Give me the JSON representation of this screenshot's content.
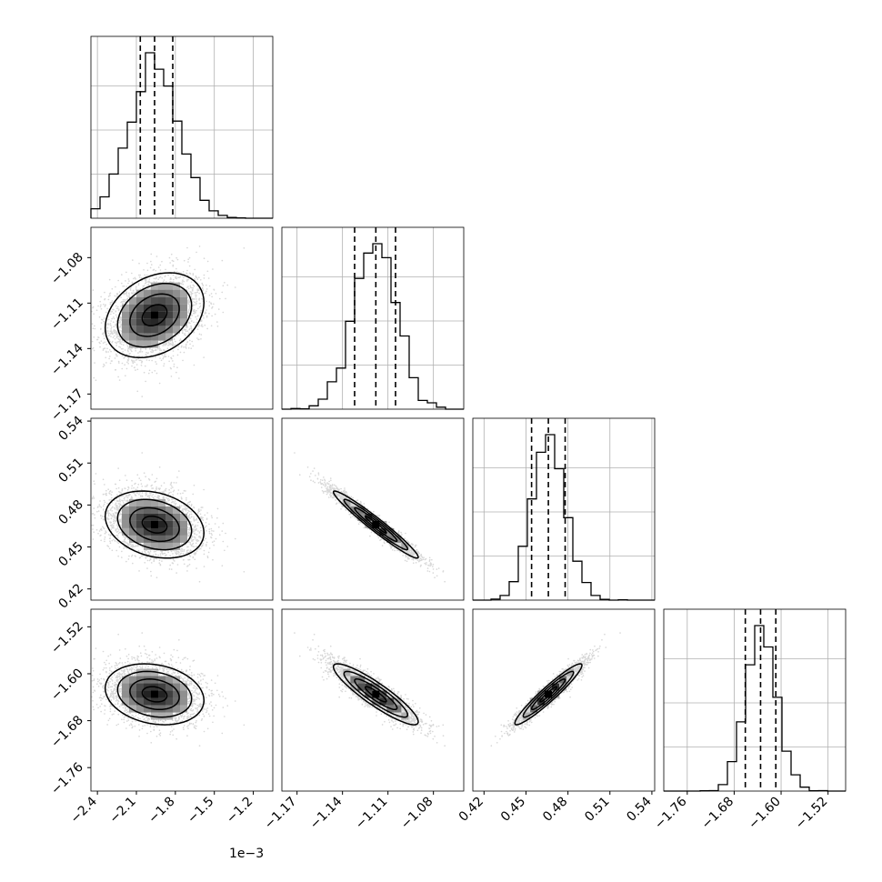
{
  "chart_data": {
    "type": "corner",
    "grid": true,
    "quantiles_shown": [
      0.16,
      0.5,
      0.84
    ],
    "offset_label": "1e−3",
    "params": [
      {
        "range": [
          -2.45,
          -1.05
        ],
        "ticks": [
          -2.4,
          -2.1,
          -1.8,
          -1.5,
          -1.2
        ],
        "tick_labels": [
          "−2.4",
          "−2.1",
          "−1.8",
          "−1.5",
          "−1.2"
        ],
        "mean": -1.96,
        "sd": 0.19,
        "quantiles": [
          -2.07,
          -1.96,
          -1.82
        ]
      },
      {
        "range": [
          -1.18,
          -1.06
        ],
        "ticks": [
          -1.17,
          -1.14,
          -1.11,
          -1.08
        ],
        "tick_labels": [
          "−1.17",
          "−1.14",
          "−1.11",
          "−1.08"
        ],
        "mean": -1.118,
        "sd": 0.014,
        "quantiles": [
          -1.132,
          -1.118,
          -1.105
        ]
      },
      {
        "range": [
          0.412,
          0.542
        ],
        "ticks": [
          0.42,
          0.45,
          0.48,
          0.51,
          0.54
        ],
        "tick_labels": [
          "0.42",
          "0.45",
          "0.48",
          "0.51",
          "0.54"
        ],
        "mean": 0.466,
        "sd": 0.012,
        "quantiles": [
          0.454,
          0.466,
          0.478
        ]
      },
      {
        "range": [
          -1.8,
          -1.49
        ],
        "ticks": [
          -1.76,
          -1.68,
          -1.6,
          -1.52
        ],
        "tick_labels": [
          "−1.76",
          "−1.68",
          "−1.60",
          "−1.52"
        ],
        "mean": -1.635,
        "sd": 0.026,
        "quantiles": [
          -1.661,
          -1.635,
          -1.609
        ]
      }
    ],
    "correlations": [
      [
        1.0,
        0.3,
        -0.25,
        -0.2
      ],
      [
        0.3,
        1.0,
        -0.97,
        -0.9
      ],
      [
        -0.25,
        -0.97,
        1.0,
        0.95
      ],
      [
        -0.2,
        -0.9,
        0.95,
        1.0
      ]
    ]
  }
}
